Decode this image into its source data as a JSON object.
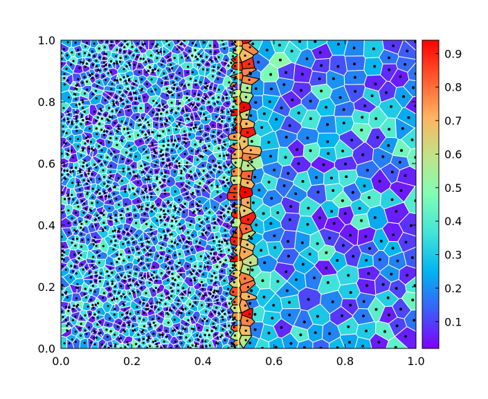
{
  "chart_data": {
    "type": "voronoi",
    "title": "",
    "xlabel": "",
    "ylabel": "",
    "xlim": [
      0.0,
      1.0
    ],
    "ylim": [
      0.0,
      1.0
    ],
    "x_ticks": [
      "0.0",
      "0.2",
      "0.4",
      "0.6",
      "0.8",
      "1.0"
    ],
    "y_ticks": [
      "0.0",
      "0.2",
      "0.4",
      "0.6",
      "0.8",
      "1.0"
    ],
    "interface_x": 0.5,
    "interface_color": "#ffff66",
    "fine_region": {
      "x_range": [
        0.0,
        0.49
      ],
      "approx_cells": 1500,
      "value_range": [
        0.05,
        0.45
      ]
    },
    "coarse_region": {
      "x_range": [
        0.51,
        1.0
      ],
      "approx_cells": 250,
      "value_range": [
        0.05,
        0.45
      ]
    },
    "interface_band": {
      "x_range": [
        0.47,
        0.55
      ],
      "value_range": [
        0.55,
        0.95
      ]
    },
    "colormap": "jet",
    "colorbar": {
      "range": [
        0.02,
        0.94
      ],
      "ticks": [
        "0.1",
        "0.2",
        "0.3",
        "0.4",
        "0.5",
        "0.6",
        "0.7",
        "0.8",
        "0.9"
      ],
      "tick_values": [
        0.1,
        0.2,
        0.3,
        0.4,
        0.5,
        0.6,
        0.7,
        0.8,
        0.9
      ]
    },
    "grid": false,
    "legend": "none"
  }
}
